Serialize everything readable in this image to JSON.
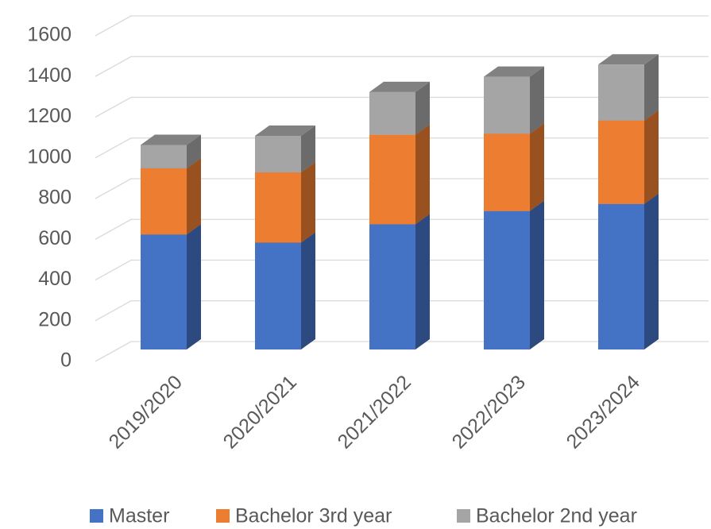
{
  "chart_data": {
    "type": "bar",
    "stacked": true,
    "three_d": true,
    "categories": [
      "2019/2020",
      "2020/2021",
      "2021/2022",
      "2022/2023",
      "2023/2024"
    ],
    "series": [
      {
        "name": "Master",
        "color": "#4472c4",
        "values": [
          565,
          525,
          615,
          680,
          715
        ]
      },
      {
        "name": "Bachelor 3rd year",
        "color": "#ed7d31",
        "values": [
          325,
          345,
          440,
          380,
          410
        ]
      },
      {
        "name": "Bachelor 2nd year",
        "color": "#a5a5a5",
        "values": [
          115,
          180,
          210,
          280,
          275
        ]
      }
    ],
    "ylim": [
      0,
      1600
    ],
    "yticks": [
      0,
      200,
      400,
      600,
      800,
      1000,
      1200,
      1400,
      1600
    ],
    "grid": true,
    "legend": "bottom"
  }
}
